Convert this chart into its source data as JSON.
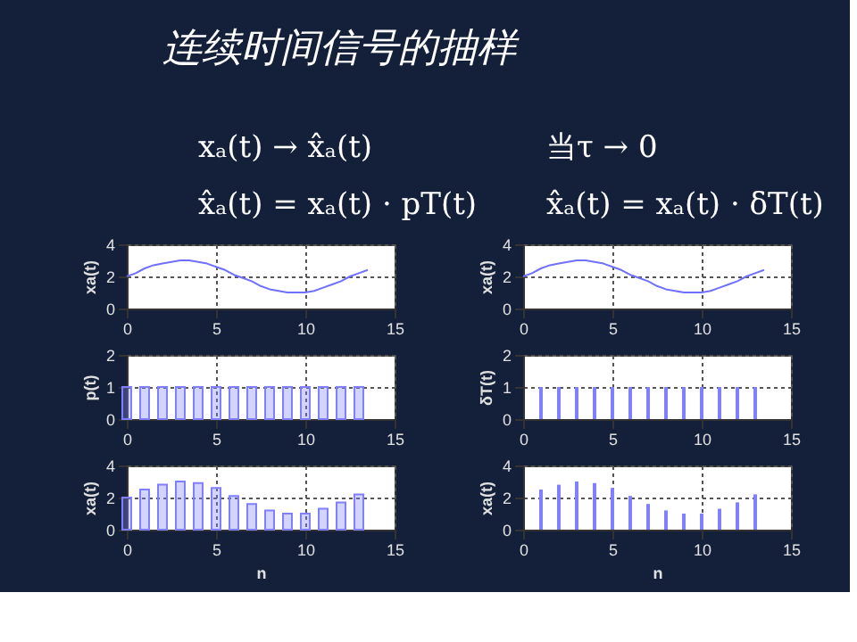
{
  "chart_data": [
    {
      "type": "other",
      "title": "连续时间信号的抽样",
      "annotations": [
        "xₐ(t) → x̂ₐ(t)",
        "当τ → 0",
        "x̂ₐ(t) = xₐ(t) · pT(t)",
        "x̂ₐ(t) = xₐ(t) · δT(t)"
      ]
    },
    {
      "type": "line",
      "ylabel": "xa(t)",
      "x": [
        0,
        0.5,
        1,
        1.5,
        2,
        2.5,
        3,
        3.5,
        4,
        4.5,
        5,
        5.5,
        6,
        6.5,
        7,
        7.5,
        8,
        8.5,
        9,
        9.5,
        10,
        10.5,
        11,
        11.5,
        12,
        12.5,
        13,
        13.5
      ],
      "series": [
        {
          "color": "#7070ff",
          "values": [
            2.0,
            2.2,
            2.5,
            2.7,
            2.8,
            2.9,
            3.0,
            3.0,
            2.9,
            2.8,
            2.6,
            2.4,
            2.1,
            1.9,
            1.7,
            1.4,
            1.2,
            1.1,
            1.0,
            1.0,
            1.0,
            1.1,
            1.3,
            1.5,
            1.7,
            2.0,
            2.2,
            2.4
          ]
        }
      ],
      "xlim": [
        0,
        15
      ],
      "xticks": [
        0,
        5,
        10,
        15
      ],
      "ylim": [
        0,
        4
      ],
      "yticks": [
        0,
        2,
        4
      ],
      "grid": true
    },
    {
      "type": "bar",
      "ylabel": "p(t)",
      "x": [
        0,
        1,
        2,
        3,
        4,
        5,
        6,
        7,
        8,
        9,
        10,
        11,
        12,
        13
      ],
      "series": [
        {
          "color": "#8080ff",
          "values": [
            1,
            1,
            1,
            1,
            1,
            1,
            1,
            1,
            1,
            1,
            1,
            1,
            1,
            1
          ]
        }
      ],
      "xlim": [
        0,
        15
      ],
      "xticks": [
        0,
        5,
        10,
        15
      ],
      "ylim": [
        0,
        2
      ],
      "yticks": [
        0,
        1,
        2
      ],
      "grid": true
    },
    {
      "type": "bar",
      "ylabel": "xa(t)",
      "xlabel": "n",
      "x": [
        0,
        1,
        2,
        3,
        4,
        5,
        6,
        7,
        8,
        9,
        10,
        11,
        12,
        13
      ],
      "series": [
        {
          "color": "#8080ff",
          "values": [
            2.0,
            2.5,
            2.8,
            3.0,
            2.9,
            2.6,
            2.1,
            1.6,
            1.2,
            1.0,
            1.0,
            1.3,
            1.7,
            2.2
          ]
        }
      ],
      "xlim": [
        0,
        15
      ],
      "xticks": [
        0,
        5,
        10,
        15
      ],
      "ylim": [
        0,
        4
      ],
      "yticks": [
        0,
        2,
        4
      ],
      "grid": true
    },
    {
      "type": "line",
      "ylabel": "xa(t)",
      "x": [
        0,
        0.5,
        1,
        1.5,
        2,
        2.5,
        3,
        3.5,
        4,
        4.5,
        5,
        5.5,
        6,
        6.5,
        7,
        7.5,
        8,
        8.5,
        9,
        9.5,
        10,
        10.5,
        11,
        11.5,
        12,
        12.5,
        13,
        13.5
      ],
      "series": [
        {
          "color": "#7070ff",
          "values": [
            2.0,
            2.2,
            2.5,
            2.7,
            2.8,
            2.9,
            3.0,
            3.0,
            2.9,
            2.8,
            2.6,
            2.4,
            2.1,
            1.9,
            1.7,
            1.4,
            1.2,
            1.1,
            1.0,
            1.0,
            1.0,
            1.1,
            1.3,
            1.5,
            1.7,
            2.0,
            2.2,
            2.4
          ]
        }
      ],
      "xlim": [
        0,
        15
      ],
      "xticks": [
        0,
        5,
        10,
        15
      ],
      "ylim": [
        0,
        4
      ],
      "yticks": [
        0,
        2,
        4
      ],
      "grid": true
    },
    {
      "type": "bar",
      "ylabel": "δT(t)",
      "x": [
        1,
        2,
        3,
        4,
        5,
        6,
        7,
        8,
        9,
        10,
        11,
        12,
        13
      ],
      "series": [
        {
          "color": "#8080ff",
          "values": [
            1,
            1,
            1,
            1,
            1,
            1,
            1,
            1,
            1,
            1,
            1,
            1,
            1
          ]
        }
      ],
      "xlim": [
        0,
        15
      ],
      "xticks": [
        0,
        5,
        10,
        15
      ],
      "ylim": [
        0,
        2
      ],
      "yticks": [
        0,
        1,
        2
      ],
      "grid": true
    },
    {
      "type": "bar",
      "ylabel": "xa(t)",
      "xlabel": "n",
      "x": [
        1,
        2,
        3,
        4,
        5,
        6,
        7,
        8,
        9,
        10,
        11,
        12,
        13
      ],
      "series": [
        {
          "color": "#8080ff",
          "values": [
            2.5,
            2.8,
            3.0,
            2.9,
            2.6,
            2.1,
            1.6,
            1.2,
            1.0,
            1.0,
            1.3,
            1.7,
            2.2
          ]
        }
      ],
      "xlim": [
        0,
        15
      ],
      "xticks": [
        0,
        5,
        10,
        15
      ],
      "ylim": [
        0,
        4
      ],
      "yticks": [
        0,
        2,
        4
      ],
      "grid": true
    }
  ]
}
